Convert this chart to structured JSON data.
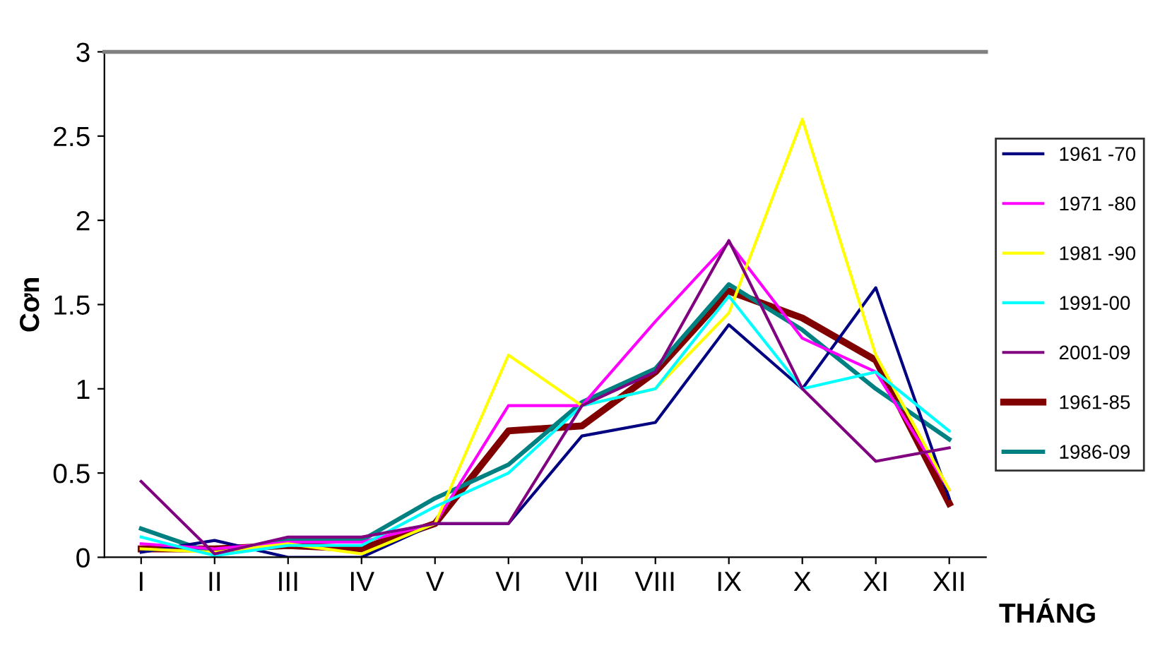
{
  "chart_data": {
    "type": "line",
    "xlabel": "THÁNG",
    "ylabel": "Cơn",
    "categories": [
      "I",
      "II",
      "III",
      "IV",
      "V",
      "VI",
      "VII",
      "VIII",
      "IX",
      "X",
      "XI",
      "XII"
    ],
    "series": [
      {
        "name": "1961 -70",
        "color": "#000080",
        "values": [
          0.03,
          0.1,
          0.0,
          0.0,
          0.2,
          0.2,
          0.72,
          0.8,
          1.38,
          1.0,
          1.6,
          0.35
        ]
      },
      {
        "name": "1971 -80",
        "color": "#ff00ff",
        "values": [
          0.08,
          0.05,
          0.09,
          0.09,
          0.2,
          0.9,
          0.9,
          1.4,
          1.87,
          1.3,
          1.1,
          0.4
        ]
      },
      {
        "name": "1981 -90",
        "color": "#ffff00",
        "values": [
          0.05,
          0.03,
          0.08,
          0.02,
          0.2,
          1.2,
          0.9,
          1.0,
          1.45,
          2.6,
          1.2,
          0.4
        ]
      },
      {
        "name": "1991-00",
        "color": "#00ffff",
        "values": [
          0.12,
          0.01,
          0.07,
          0.07,
          0.3,
          0.5,
          0.9,
          1.0,
          1.55,
          1.0,
          1.1,
          0.75
        ]
      },
      {
        "name": "2001-09",
        "color": "#800080",
        "values": [
          0.45,
          0.02,
          0.12,
          0.12,
          0.2,
          0.2,
          0.9,
          1.1,
          1.88,
          1.0,
          0.57,
          0.65
        ]
      },
      {
        "name": "1961-85",
        "color": "#800000",
        "values": [
          0.05,
          0.05,
          0.07,
          0.05,
          0.2,
          0.75,
          0.78,
          1.1,
          1.58,
          1.42,
          1.17,
          0.32
        ]
      },
      {
        "name": "1986-09",
        "color": "#008080",
        "values": [
          0.17,
          0.02,
          0.1,
          0.1,
          0.35,
          0.55,
          0.92,
          1.12,
          1.62,
          1.35,
          1.0,
          0.7
        ]
      }
    ],
    "ylim": [
      0,
      3
    ],
    "yticks": [
      0,
      0.5,
      1,
      1.5,
      2,
      2.5,
      3
    ],
    "grid": false,
    "legend": "right",
    "marker": "none",
    "line_style": "solid"
  }
}
